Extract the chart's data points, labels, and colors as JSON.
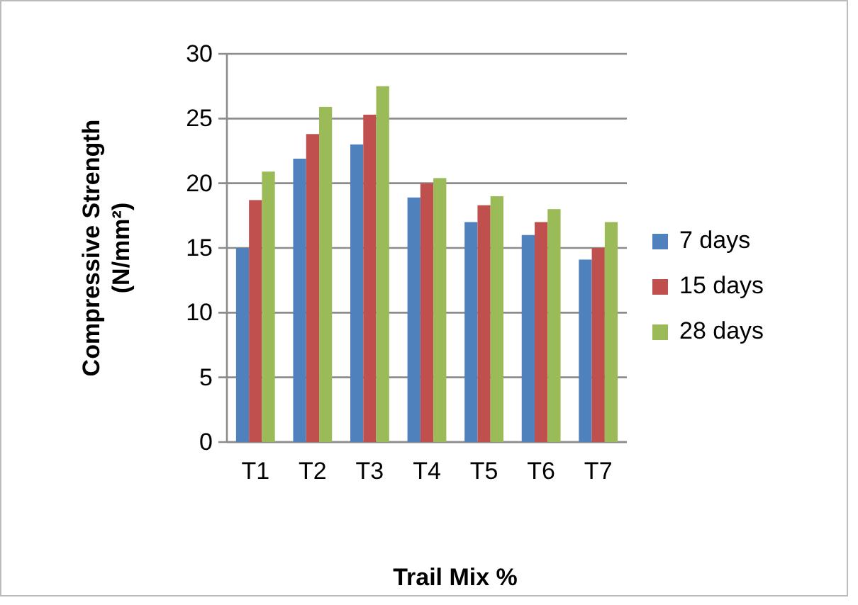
{
  "chart_data": {
    "type": "bar",
    "xlabel": "Trail Mix %",
    "ylabel": "Compressive  Strength\n(N/mm²)",
    "categories": [
      "T1",
      "T2",
      "T3",
      "T4",
      "T5",
      "T6",
      "T7"
    ],
    "series": [
      {
        "name": "7 days",
        "color": "#4f81bd",
        "values": [
          15.0,
          21.9,
          23.0,
          18.9,
          17.0,
          16.0,
          14.1
        ]
      },
      {
        "name": "15 days",
        "color": "#c0504d",
        "values": [
          18.7,
          23.8,
          25.3,
          20.0,
          18.3,
          17.0,
          15.0
        ]
      },
      {
        "name": "28 days",
        "color": "#9bbb59",
        "values": [
          20.9,
          25.9,
          27.5,
          20.4,
          19.0,
          18.0,
          17.0
        ]
      }
    ],
    "ylim": [
      0,
      30
    ],
    "yticks": [
      0,
      5,
      10,
      15,
      20,
      25,
      30
    ],
    "grid": "y",
    "legend": "right"
  }
}
